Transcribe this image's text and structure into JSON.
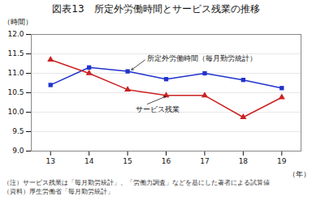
{
  "chart_data": {
    "type": "line",
    "title": "図表13　所定外労働時間とサービス残業の推移",
    "ylabel": "（時間）",
    "xlabel": "（年）",
    "x": [
      13,
      14,
      15,
      16,
      17,
      18,
      19
    ],
    "series": [
      {
        "name": "所定外労働時間（毎月勤労統計）",
        "color": "#2233cc",
        "marker": "square",
        "values": [
          10.7,
          11.15,
          11.05,
          10.85,
          11.0,
          10.83,
          10.62
        ]
      },
      {
        "name": "サービス残業",
        "color": "#cc2222",
        "marker": "triangle",
        "values": [
          11.35,
          11.0,
          10.58,
          10.43,
          10.43,
          9.87,
          10.38
        ]
      }
    ],
    "xlim": [
      12.5,
      19.5
    ],
    "xticks": [
      13,
      14,
      15,
      16,
      17,
      18,
      19
    ],
    "ylim": [
      9.0,
      12.0
    ],
    "yticks": [
      {
        "value": 9.0,
        "label": "9.0"
      },
      {
        "value": 9.5,
        "label": "9.5"
      },
      {
        "value": 10.0,
        "label": "10.0"
      },
      {
        "value": 10.5,
        "label": "10.5"
      },
      {
        "value": 11.0,
        "label": "11.0"
      },
      {
        "value": 11.5,
        "label": "11.5"
      },
      {
        "value": 12.0,
        "label": "12.0"
      }
    ],
    "grid": true,
    "annotations": [
      {
        "text": "所定外労働時間（毎月勤労統計）",
        "x": 15.05,
        "y": 11.05,
        "text_x": 15.5,
        "text_y": 11.38
      },
      {
        "text": "サービス残業",
        "x": 16.05,
        "y": 10.43,
        "text_x": 15.2,
        "text_y": 10.08
      }
    ],
    "notes": [
      "（注）サービス残業は「毎月勤労統計」、「労働力調査」などを基にした著者による試算値",
      "（資料）厚生労働省「毎月勤労統計」"
    ]
  }
}
